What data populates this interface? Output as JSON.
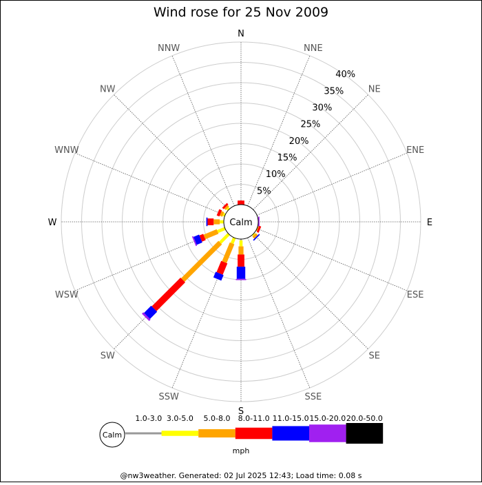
{
  "chart_data": {
    "type": "windrose",
    "title": "Wind rose for 25 Nov 2009",
    "directions": [
      "N",
      "NNE",
      "NE",
      "ENE",
      "E",
      "ESE",
      "SE",
      "SSE",
      "S",
      "SSW",
      "SW",
      "WSW",
      "W",
      "WNW",
      "NW",
      "NNW"
    ],
    "radial_ticks": [
      "5%",
      "10%",
      "15%",
      "20%",
      "25%",
      "30%",
      "35%",
      "40%"
    ],
    "radial_max": 40,
    "calm_label": "Calm",
    "speed_unit": "mph",
    "speed_bins": [
      {
        "label": "1.0-3.0",
        "color": "#999999"
      },
      {
        "label": "3.0-5.0",
        "color": "#ffff00"
      },
      {
        "label": "5.0-8.0",
        "color": "#ffa500"
      },
      {
        "label": "8.0-11.0",
        "color": "#ff0000"
      },
      {
        "label": "11.0-15.0",
        "color": "#0000ff"
      },
      {
        "label": "15.0-20.0",
        "color": "#a020f0"
      },
      {
        "label": "20.0-50.0",
        "color": "#000000"
      }
    ],
    "series": [
      {
        "direction": "N",
        "values": [
          0,
          0,
          0,
          1.0,
          0,
          0,
          0
        ]
      },
      {
        "direction": "NNE",
        "values": [
          0,
          0,
          0,
          0,
          0,
          0,
          0
        ]
      },
      {
        "direction": "NE",
        "values": [
          0,
          0,
          0,
          0,
          0,
          0,
          0
        ]
      },
      {
        "direction": "ENE",
        "values": [
          0,
          0,
          0,
          0,
          0,
          0,
          0
        ]
      },
      {
        "direction": "E",
        "values": [
          0,
          0,
          0,
          0,
          0,
          0.3,
          0
        ]
      },
      {
        "direction": "ESE",
        "values": [
          0,
          0,
          0.3,
          0.5,
          0,
          0,
          0
        ]
      },
      {
        "direction": "SE",
        "values": [
          0,
          0.3,
          0.7,
          0,
          0.3,
          0,
          0
        ]
      },
      {
        "direction": "SSE",
        "values": [
          0,
          0,
          0,
          0,
          0,
          0,
          0
        ]
      },
      {
        "direction": "S",
        "values": [
          0.3,
          1.5,
          2.0,
          3.0,
          3.0,
          0.3,
          0
        ]
      },
      {
        "direction": "SSW",
        "values": [
          0,
          1.5,
          5.0,
          3.0,
          1.5,
          0,
          0
        ]
      },
      {
        "direction": "SW",
        "values": [
          0,
          3.0,
          13.0,
          10.0,
          2.5,
          0.5,
          0
        ]
      },
      {
        "direction": "WSW",
        "values": [
          0,
          2.0,
          3.5,
          1.0,
          1.5,
          0.3,
          0
        ]
      },
      {
        "direction": "W",
        "values": [
          0,
          1.0,
          1.5,
          1.5,
          0.3,
          0,
          0
        ]
      },
      {
        "direction": "WNW",
        "values": [
          0,
          0.5,
          0.7,
          0.7,
          0,
          0,
          0
        ]
      },
      {
        "direction": "NW",
        "values": [
          0,
          0.5,
          0.5,
          0.5,
          0,
          0,
          0
        ]
      },
      {
        "direction": "NNW",
        "values": [
          0,
          0,
          0,
          0,
          0,
          0,
          0
        ]
      }
    ],
    "footer": "@nw3weather. Generated: 02 Jul 2025 12:43; Load time: 0.08 s"
  }
}
